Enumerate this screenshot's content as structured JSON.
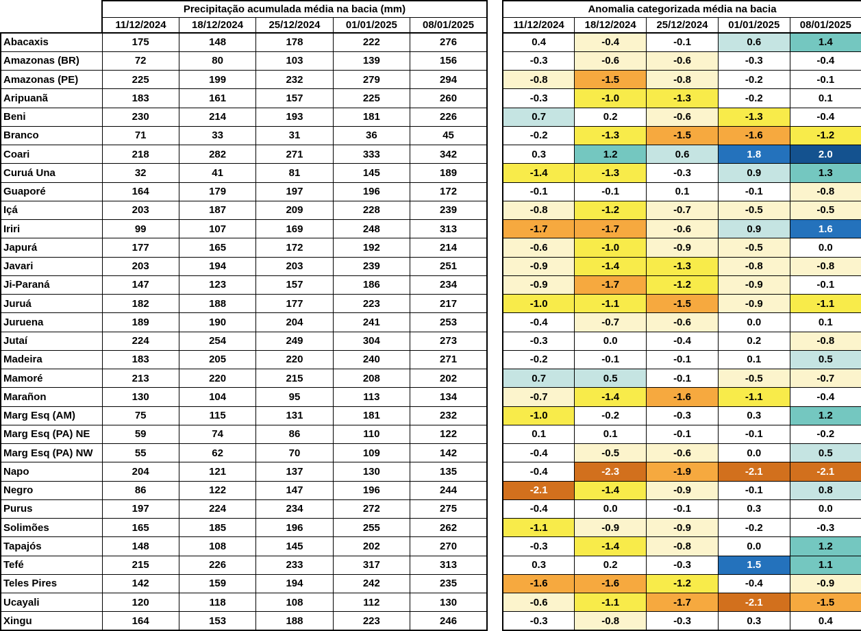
{
  "palette": {
    "white": "#FFFFFF",
    "cream": "#FCF4CC",
    "yellow": "#F8EB4A",
    "orange": "#F6A93F",
    "orange-dark": "#D2701D",
    "teal-light": "#C5E4E2",
    "teal": "#74C7C0",
    "blue": "#2472BC",
    "blue-dark": "#14528F",
    "border": "#000000",
    "text_dark": "#000000",
    "text_light": "#FFFFFF"
  },
  "light_text_categories": [
    "orange-dark",
    "blue",
    "blue-dark"
  ],
  "chart_data": {
    "type": "table",
    "tables": [
      {
        "title": "Precipitação acumulada média na bacia (mm)",
        "columns": [
          "11/12/2024",
          "18/12/2024",
          "25/12/2024",
          "01/01/2025",
          "08/01/2025"
        ],
        "rows": [
          {
            "basin": "Abacaxis",
            "values": [
              175,
              148,
              178,
              222,
              276
            ]
          },
          {
            "basin": "Amazonas (BR)",
            "values": [
              72,
              80,
              103,
              139,
              156
            ]
          },
          {
            "basin": "Amazonas (PE)",
            "values": [
              225,
              199,
              232,
              279,
              294
            ]
          },
          {
            "basin": "Aripuanã",
            "values": [
              183,
              161,
              157,
              225,
              260
            ]
          },
          {
            "basin": "Beni",
            "values": [
              230,
              214,
              193,
              181,
              226
            ]
          },
          {
            "basin": "Branco",
            "values": [
              71,
              33,
              31,
              36,
              45
            ]
          },
          {
            "basin": "Coari",
            "values": [
              218,
              282,
              271,
              333,
              342
            ]
          },
          {
            "basin": "Curuá Una",
            "values": [
              32,
              41,
              81,
              145,
              189
            ]
          },
          {
            "basin": "Guaporé",
            "values": [
              164,
              179,
              197,
              196,
              172
            ]
          },
          {
            "basin": "Içá",
            "values": [
              203,
              187,
              209,
              228,
              239
            ]
          },
          {
            "basin": "Iriri",
            "values": [
              99,
              107,
              169,
              248,
              313
            ]
          },
          {
            "basin": "Japurá",
            "values": [
              177,
              165,
              172,
              192,
              214
            ]
          },
          {
            "basin": "Javari",
            "values": [
              203,
              194,
              203,
              239,
              251
            ]
          },
          {
            "basin": "Ji-Paraná",
            "values": [
              147,
              123,
              157,
              186,
              234
            ]
          },
          {
            "basin": "Juruá",
            "values": [
              182,
              188,
              177,
              223,
              217
            ]
          },
          {
            "basin": "Juruena",
            "values": [
              189,
              190,
              204,
              241,
              253
            ]
          },
          {
            "basin": "Jutaí",
            "values": [
              224,
              254,
              249,
              304,
              273
            ]
          },
          {
            "basin": "Madeira",
            "values": [
              183,
              205,
              220,
              240,
              271
            ]
          },
          {
            "basin": "Mamoré",
            "values": [
              213,
              220,
              215,
              208,
              202
            ]
          },
          {
            "basin": "Marañon",
            "values": [
              130,
              104,
              95,
              113,
              134
            ]
          },
          {
            "basin": "Marg Esq (AM)",
            "values": [
              75,
              115,
              131,
              181,
              232
            ]
          },
          {
            "basin": "Marg Esq (PA) NE",
            "values": [
              59,
              74,
              86,
              110,
              122
            ]
          },
          {
            "basin": "Marg Esq (PA) NW",
            "values": [
              55,
              62,
              70,
              109,
              142
            ]
          },
          {
            "basin": "Napo",
            "values": [
              204,
              121,
              137,
              130,
              135
            ]
          },
          {
            "basin": "Negro",
            "values": [
              86,
              122,
              147,
              196,
              244
            ]
          },
          {
            "basin": "Purus",
            "values": [
              197,
              224,
              234,
              272,
              275
            ]
          },
          {
            "basin": "Solimões",
            "values": [
              165,
              185,
              196,
              255,
              262
            ]
          },
          {
            "basin": "Tapajós",
            "values": [
              148,
              108,
              145,
              202,
              270
            ]
          },
          {
            "basin": "Tefé",
            "values": [
              215,
              226,
              233,
              317,
              313
            ]
          },
          {
            "basin": "Teles Pires",
            "values": [
              142,
              159,
              194,
              242,
              235
            ]
          },
          {
            "basin": "Ucayali",
            "values": [
              120,
              118,
              108,
              112,
              130
            ]
          },
          {
            "basin": "Xingu",
            "values": [
              164,
              153,
              188,
              223,
              246
            ]
          }
        ]
      },
      {
        "title": "Anomalia categorizada média na bacia",
        "columns": [
          "11/12/2024",
          "18/12/2024",
          "25/12/2024",
          "01/01/2025",
          "08/01/2025"
        ],
        "rows": [
          {
            "basin": "Abacaxis",
            "values": [
              "0.4",
              "-0.4",
              "-0.1",
              "0.6",
              "1.4"
            ],
            "categories": [
              "white",
              "cream",
              "white",
              "teal-light",
              "teal"
            ]
          },
          {
            "basin": "Amazonas (BR)",
            "values": [
              "-0.3",
              "-0.6",
              "-0.6",
              "-0.3",
              "-0.4"
            ],
            "categories": [
              "white",
              "cream",
              "cream",
              "white",
              "white"
            ]
          },
          {
            "basin": "Amazonas (PE)",
            "values": [
              "-0.8",
              "-1.5",
              "-0.8",
              "-0.2",
              "-0.1"
            ],
            "categories": [
              "cream",
              "orange",
              "cream",
              "white",
              "white"
            ]
          },
          {
            "basin": "Aripuanã",
            "values": [
              "-0.3",
              "-1.0",
              "-1.3",
              "-0.2",
              "0.1"
            ],
            "categories": [
              "white",
              "yellow",
              "yellow",
              "white",
              "white"
            ]
          },
          {
            "basin": "Beni",
            "values": [
              "0.7",
              "0.2",
              "-0.6",
              "-1.3",
              "-0.4"
            ],
            "categories": [
              "teal-light",
              "white",
              "cream",
              "yellow",
              "white"
            ]
          },
          {
            "basin": "Branco",
            "values": [
              "-0.2",
              "-1.3",
              "-1.5",
              "-1.6",
              "-1.2"
            ],
            "categories": [
              "white",
              "yellow",
              "orange",
              "orange",
              "yellow"
            ]
          },
          {
            "basin": "Coari",
            "values": [
              "0.3",
              "1.2",
              "0.6",
              "1.8",
              "2.0"
            ],
            "categories": [
              "white",
              "teal",
              "teal-light",
              "blue",
              "blue-dark"
            ]
          },
          {
            "basin": "Curuá Una",
            "values": [
              "-1.4",
              "-1.3",
              "-0.3",
              "0.9",
              "1.3"
            ],
            "categories": [
              "yellow",
              "yellow",
              "white",
              "teal-light",
              "teal"
            ]
          },
          {
            "basin": "Guaporé",
            "values": [
              "-0.1",
              "-0.1",
              "0.1",
              "-0.1",
              "-0.8"
            ],
            "categories": [
              "white",
              "white",
              "white",
              "white",
              "cream"
            ]
          },
          {
            "basin": "Içá",
            "values": [
              "-0.8",
              "-1.2",
              "-0.7",
              "-0.5",
              "-0.5"
            ],
            "categories": [
              "cream",
              "yellow",
              "cream",
              "cream",
              "cream"
            ]
          },
          {
            "basin": "Iriri",
            "values": [
              "-1.7",
              "-1.7",
              "-0.6",
              "0.9",
              "1.6"
            ],
            "categories": [
              "orange",
              "orange",
              "cream",
              "teal-light",
              "blue"
            ]
          },
          {
            "basin": "Japurá",
            "values": [
              "-0.6",
              "-1.0",
              "-0.9",
              "-0.5",
              "0.0"
            ],
            "categories": [
              "cream",
              "yellow",
              "cream",
              "cream",
              "white"
            ]
          },
          {
            "basin": "Javari",
            "values": [
              "-0.9",
              "-1.4",
              "-1.3",
              "-0.8",
              "-0.8"
            ],
            "categories": [
              "cream",
              "yellow",
              "yellow",
              "cream",
              "cream"
            ]
          },
          {
            "basin": "Ji-Paraná",
            "values": [
              "-0.9",
              "-1.7",
              "-1.2",
              "-0.9",
              "-0.1"
            ],
            "categories": [
              "cream",
              "orange",
              "yellow",
              "cream",
              "white"
            ]
          },
          {
            "basin": "Juruá",
            "values": [
              "-1.0",
              "-1.1",
              "-1.5",
              "-0.9",
              "-1.1"
            ],
            "categories": [
              "yellow",
              "yellow",
              "orange",
              "cream",
              "yellow"
            ]
          },
          {
            "basin": "Juruena",
            "values": [
              "-0.4",
              "-0.7",
              "-0.6",
              "0.0",
              "0.1"
            ],
            "categories": [
              "white",
              "cream",
              "cream",
              "white",
              "white"
            ]
          },
          {
            "basin": "Jutaí",
            "values": [
              "-0.3",
              "0.0",
              "-0.4",
              "0.2",
              "-0.8"
            ],
            "categories": [
              "white",
              "white",
              "white",
              "white",
              "cream"
            ]
          },
          {
            "basin": "Madeira",
            "values": [
              "-0.2",
              "-0.1",
              "-0.1",
              "0.1",
              "0.5"
            ],
            "categories": [
              "white",
              "white",
              "white",
              "white",
              "teal-light"
            ]
          },
          {
            "basin": "Mamoré",
            "values": [
              "0.7",
              "0.5",
              "-0.1",
              "-0.5",
              "-0.7"
            ],
            "categories": [
              "teal-light",
              "teal-light",
              "white",
              "cream",
              "cream"
            ]
          },
          {
            "basin": "Marañon",
            "values": [
              "-0.7",
              "-1.4",
              "-1.6",
              "-1.1",
              "-0.4"
            ],
            "categories": [
              "cream",
              "yellow",
              "orange",
              "yellow",
              "white"
            ]
          },
          {
            "basin": "Marg Esq (AM)",
            "values": [
              "-1.0",
              "-0.2",
              "-0.3",
              "0.3",
              "1.2"
            ],
            "categories": [
              "yellow",
              "white",
              "white",
              "white",
              "teal"
            ]
          },
          {
            "basin": "Marg Esq (PA) NE",
            "values": [
              "0.1",
              "0.1",
              "-0.1",
              "-0.1",
              "-0.2"
            ],
            "categories": [
              "white",
              "white",
              "white",
              "white",
              "white"
            ]
          },
          {
            "basin": "Marg Esq (PA) NW",
            "values": [
              "-0.4",
              "-0.5",
              "-0.6",
              "0.0",
              "0.5"
            ],
            "categories": [
              "white",
              "cream",
              "cream",
              "white",
              "teal-light"
            ]
          },
          {
            "basin": "Napo",
            "values": [
              "-0.4",
              "-2.3",
              "-1.9",
              "-2.1",
              "-2.1"
            ],
            "categories": [
              "white",
              "orange-dark",
              "orange",
              "orange-dark",
              "orange-dark"
            ]
          },
          {
            "basin": "Negro",
            "values": [
              "-2.1",
              "-1.4",
              "-0.9",
              "-0.1",
              "0.8"
            ],
            "categories": [
              "orange-dark",
              "yellow",
              "cream",
              "white",
              "teal-light"
            ]
          },
          {
            "basin": "Purus",
            "values": [
              "-0.4",
              "0.0",
              "-0.1",
              "0.3",
              "0.0"
            ],
            "categories": [
              "white",
              "white",
              "white",
              "white",
              "white"
            ]
          },
          {
            "basin": "Solimões",
            "values": [
              "-1.1",
              "-0.9",
              "-0.9",
              "-0.2",
              "-0.3"
            ],
            "categories": [
              "yellow",
              "cream",
              "cream",
              "white",
              "white"
            ]
          },
          {
            "basin": "Tapajós",
            "values": [
              "-0.3",
              "-1.4",
              "-0.8",
              "0.0",
              "1.2"
            ],
            "categories": [
              "white",
              "yellow",
              "cream",
              "white",
              "teal"
            ]
          },
          {
            "basin": "Tefé",
            "values": [
              "0.3",
              "0.2",
              "-0.3",
              "1.5",
              "1.1"
            ],
            "categories": [
              "white",
              "white",
              "white",
              "blue",
              "teal"
            ]
          },
          {
            "basin": "Teles Pires",
            "values": [
              "-1.6",
              "-1.6",
              "-1.2",
              "-0.4",
              "-0.9"
            ],
            "categories": [
              "orange",
              "orange",
              "yellow",
              "white",
              "cream"
            ]
          },
          {
            "basin": "Ucayali",
            "values": [
              "-0.6",
              "-1.1",
              "-1.7",
              "-2.1",
              "-1.5"
            ],
            "categories": [
              "cream",
              "yellow",
              "orange",
              "orange-dark",
              "orange"
            ]
          },
          {
            "basin": "Xingu",
            "values": [
              "-0.3",
              "-0.8",
              "-0.3",
              "0.3",
              "0.4"
            ],
            "categories": [
              "white",
              "cream",
              "white",
              "white",
              "white"
            ]
          }
        ]
      }
    ]
  }
}
